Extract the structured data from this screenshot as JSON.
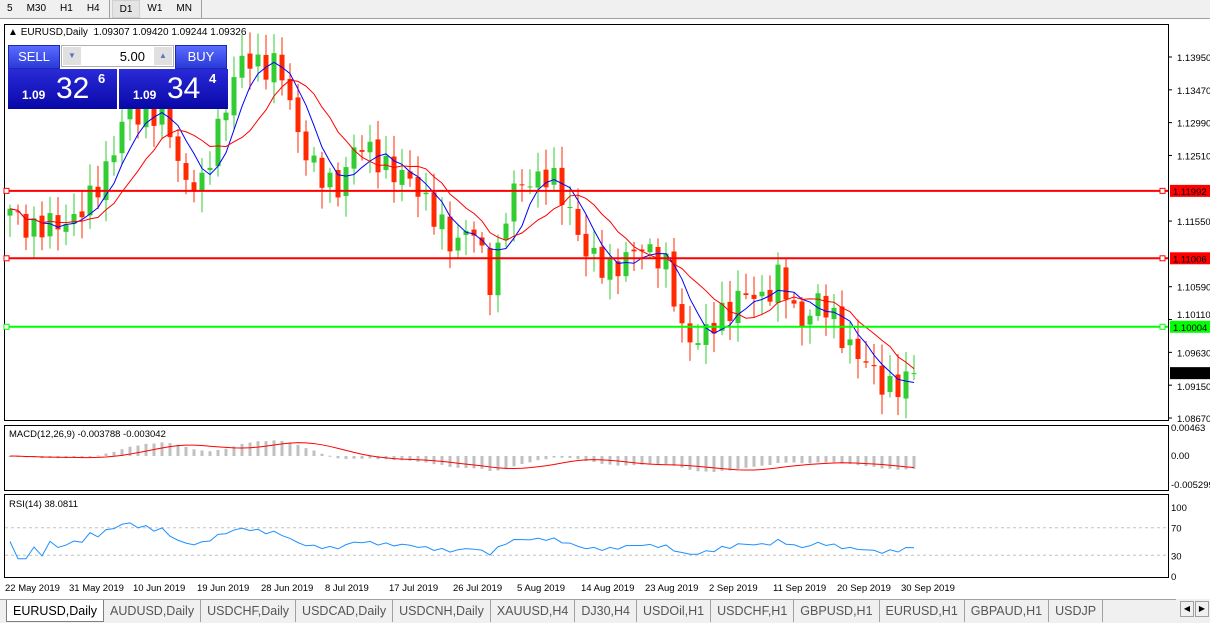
{
  "timeframes": [
    "5",
    "M30",
    "H1",
    "H4",
    "D1",
    "W1",
    "MN"
  ],
  "active_timeframe": "D1",
  "chart": {
    "symbol_header": "EURUSD,Daily",
    "ohlc": "1.09307 1.09420 1.09244 1.09326"
  },
  "trade_panel": {
    "sell_label": "SELL",
    "buy_label": "BUY",
    "volume": "5.00",
    "sell_prefix": "1.09",
    "sell_big": "32",
    "sell_pip": "6",
    "buy_prefix": "1.09",
    "buy_big": "34",
    "buy_pip": "4"
  },
  "price_axis": [
    "1.13950",
    "1.13470",
    "1.12990",
    "1.12510",
    "1.11550",
    "1.10590",
    "1.10110",
    "1.09630",
    "1.09150",
    "1.08670"
  ],
  "hlines": [
    {
      "price": "1.11992",
      "color": "#ff0000"
    },
    {
      "price": "1.11006",
      "color": "#ff0000"
    },
    {
      "price": "1.10004",
      "color": "#00ff00"
    }
  ],
  "current_price": "1.09326",
  "key_closes": [
    1.1164,
    1.115,
    1.1142,
    1.116,
    1.1171,
    1.1237,
    1.1303,
    1.1317,
    1.131,
    1.1222,
    1.12,
    1.1317,
    1.1383,
    1.1391,
    1.1376,
    1.1288,
    1.1215,
    1.1208,
    1.1259,
    1.1259,
    1.1215,
    1.1222,
    1.1157,
    1.1127,
    1.1142,
    1.1069,
    1.1186,
    1.1222,
    1.1215,
    1.1186,
    1.1098,
    1.1091,
    1.1091,
    1.1127,
    1.1091,
    1.0996,
    1.0974,
    1.1025,
    1.104,
    1.1047,
    1.1069,
    1.101,
    1.1032,
    1.101,
    1.0952,
    1.0937,
    1.0901,
    1.093
  ],
  "colors": {
    "bull": "#32cd32",
    "bear": "#ff2a00",
    "ma_fast": "#0000ff",
    "ma_slow": "#ff0000",
    "macd_hist": "#c0c0c0",
    "macd_signal": "#ff0000",
    "rsi": "#1e90ff"
  },
  "macd": {
    "label": "MACD(12,26,9) -0.003788 -0.003042",
    "axis": [
      "0.00463",
      "0.00",
      "-0.005299"
    ]
  },
  "rsi": {
    "label": "RSI(14) 38.0811",
    "axis": [
      "100",
      "70",
      "30",
      "0"
    ]
  },
  "time_axis": [
    "22 May 2019",
    "31 May 2019",
    "10 Jun 2019",
    "19 Jun 2019",
    "28 Jun 2019",
    "8 Jul 2019",
    "17 Jul 2019",
    "26 Jul 2019",
    "5 Aug 2019",
    "14 Aug 2019",
    "23 Aug 2019",
    "2 Sep 2019",
    "11 Sep 2019",
    "20 Sep 2019",
    "30 Sep 2019"
  ],
  "tabs": [
    "EURUSD,Daily",
    "AUDUSD,Daily",
    "USDCHF,Daily",
    "USDCAD,Daily",
    "USDCNH,Daily",
    "XAUUSD,H4",
    "DJ30,H4",
    "USDOil,H1",
    "USDCHF,H1",
    "GBPUSD,H1",
    "EURUSD,H1",
    "GBPAUD,H1",
    "USDJP"
  ]
}
